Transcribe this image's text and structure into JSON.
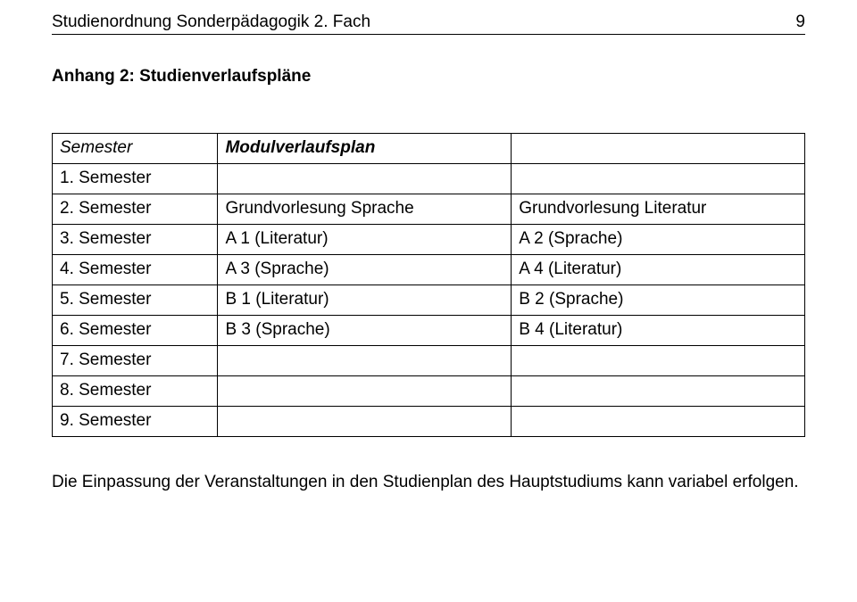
{
  "header": {
    "title": "Studienordnung Sonderpädagogik 2. Fach",
    "page_number": "9"
  },
  "section_heading": "Anhang 2: Studienverlaufspläne",
  "table": {
    "head": {
      "c1": "Semester",
      "c2": "Modulverlaufsplan",
      "c3": ""
    },
    "rows": [
      {
        "c1": "1. Semester",
        "c2": "",
        "c3": ""
      },
      {
        "c1": "2. Semester",
        "c2": "Grundvorlesung Sprache",
        "c3": "Grundvorlesung Literatur"
      },
      {
        "c1": "3. Semester",
        "c2": "A 1 (Literatur)",
        "c3": "A 2 (Sprache)"
      },
      {
        "c1": "4. Semester",
        "c2": "A 3 (Sprache)",
        "c3": "A 4 (Literatur)"
      },
      {
        "c1": "5. Semester",
        "c2": "B 1 (Literatur)",
        "c3": "B 2 (Sprache)"
      },
      {
        "c1": "6. Semester",
        "c2": "B 3 (Sprache)",
        "c3": "B 4 (Literatur)"
      },
      {
        "c1": "7. Semester",
        "c2": "",
        "c3": ""
      },
      {
        "c1": "8. Semester",
        "c2": "",
        "c3": ""
      },
      {
        "c1": "9. Semester",
        "c2": "",
        "c3": ""
      }
    ]
  },
  "footnote": "Die Einpassung der Veranstaltungen in den Studienplan des Hauptstudiums kann variabel erfolgen."
}
